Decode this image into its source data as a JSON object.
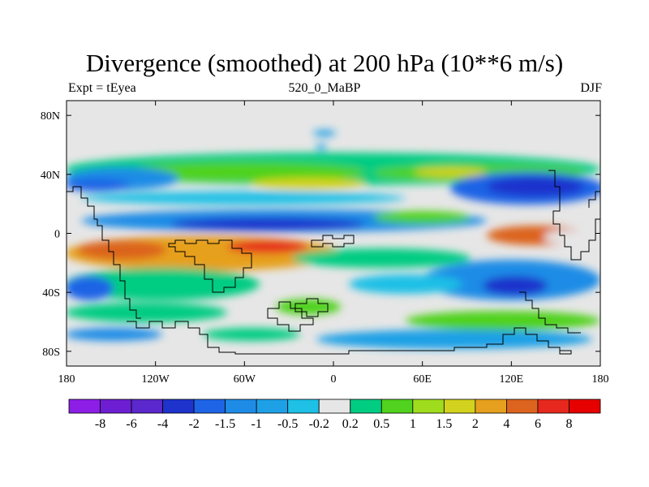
{
  "chart_data": {
    "type": "heatmap",
    "title": "Divergence (smoothed) at 200 hPa (10**6 m/s)",
    "left_label": "Expt = tEyea",
    "center_label": "520_0_MaBP",
    "right_label": "DJF",
    "x_ticks": [
      {
        "value": -180,
        "label": "180"
      },
      {
        "value": -120,
        "label": "120W"
      },
      {
        "value": -60,
        "label": "60W"
      },
      {
        "value": 0,
        "label": "0"
      },
      {
        "value": 60,
        "label": "60E"
      },
      {
        "value": 120,
        "label": "120E"
      },
      {
        "value": 180,
        "label": "180"
      }
    ],
    "y_ticks": [
      {
        "value": 80,
        "label": "80N"
      },
      {
        "value": 40,
        "label": "40N"
      },
      {
        "value": 0,
        "label": "0"
      },
      {
        "value": -40,
        "label": "40S"
      },
      {
        "value": -80,
        "label": "80S"
      }
    ],
    "xlim": [
      -180,
      180
    ],
    "ylim": [
      -90,
      90
    ],
    "colorbar": {
      "colors": [
        "#8c1ee6",
        "#6e1ed2",
        "#5a28cc",
        "#1e32cc",
        "#1e64e6",
        "#1e8ce6",
        "#1ea0e6",
        "#1ec0e6",
        "#e6e6e6",
        "#00cc82",
        "#50d21e",
        "#a0dc1e",
        "#d2d21e",
        "#e6a01e",
        "#dc641e",
        "#e6281e",
        "#e60000"
      ],
      "labels": [
        "-8",
        "-6",
        "-4",
        "-2",
        "-1.5",
        "-1",
        "-0.5",
        "-0.2",
        "0.2",
        "0.5",
        "1",
        "1.5",
        "2",
        "4",
        "6",
        "8"
      ]
    }
  }
}
